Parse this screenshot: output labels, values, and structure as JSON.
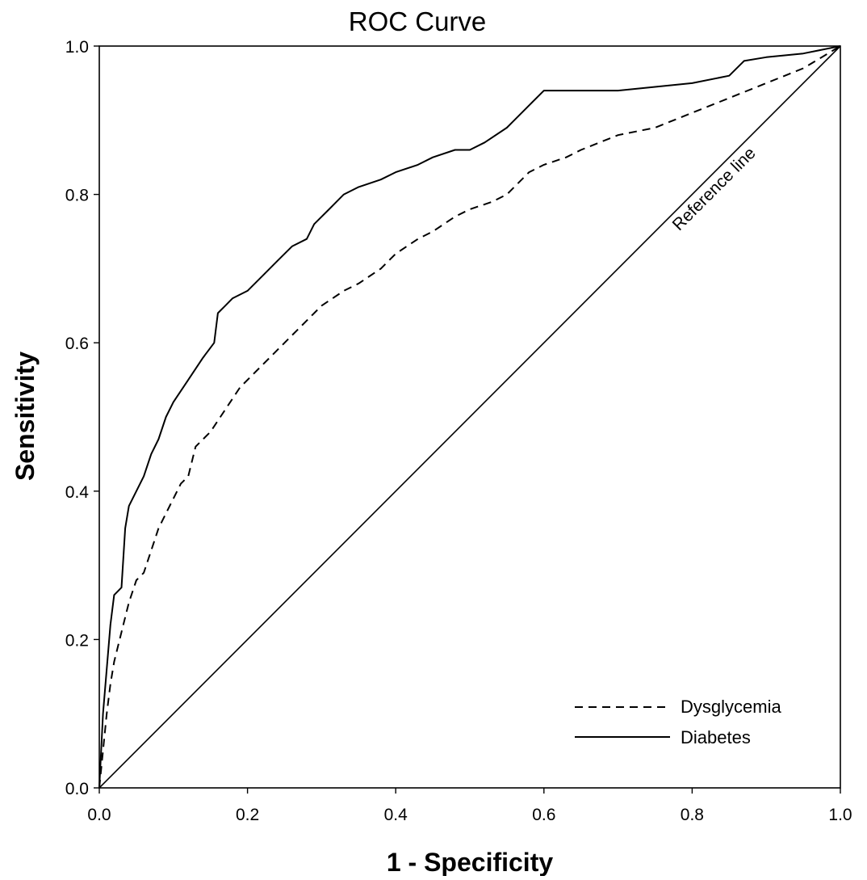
{
  "chart_data": {
    "type": "line",
    "title": "ROC Curve",
    "xlabel": "1 - Specificity",
    "ylabel": "Sensitivity",
    "xlim": [
      0,
      1
    ],
    "ylim": [
      0,
      1
    ],
    "xticks": [
      0.0,
      0.2,
      0.4,
      0.6,
      0.8,
      1.0
    ],
    "yticks": [
      0.0,
      0.2,
      0.4,
      0.6,
      0.8,
      1.0
    ],
    "xtick_labels": [
      "0.0",
      "0.2",
      "0.4",
      "0.6",
      "0.8",
      "1.0"
    ],
    "ytick_labels": [
      "0.0",
      "0.2",
      "0.4",
      "0.6",
      "0.8",
      "1.0"
    ],
    "grid": false,
    "legend_position": "bottom-right",
    "series": [
      {
        "name": "Dysglycemia",
        "style": "dashed",
        "x": [
          0,
          0.005,
          0.01,
          0.015,
          0.02,
          0.03,
          0.04,
          0.05,
          0.06,
          0.07,
          0.08,
          0.09,
          0.1,
          0.11,
          0.12,
          0.13,
          0.15,
          0.17,
          0.19,
          0.22,
          0.25,
          0.28,
          0.3,
          0.33,
          0.35,
          0.38,
          0.4,
          0.43,
          0.45,
          0.48,
          0.5,
          0.53,
          0.55,
          0.58,
          0.6,
          0.63,
          0.65,
          0.7,
          0.75,
          0.8,
          0.85,
          0.9,
          0.95,
          1.0
        ],
        "y": [
          0,
          0.05,
          0.1,
          0.14,
          0.17,
          0.21,
          0.25,
          0.28,
          0.29,
          0.32,
          0.35,
          0.37,
          0.39,
          0.41,
          0.42,
          0.46,
          0.48,
          0.51,
          0.54,
          0.57,
          0.6,
          0.63,
          0.65,
          0.67,
          0.68,
          0.7,
          0.72,
          0.74,
          0.75,
          0.77,
          0.78,
          0.79,
          0.8,
          0.83,
          0.84,
          0.85,
          0.86,
          0.88,
          0.89,
          0.91,
          0.93,
          0.95,
          0.97,
          1.0
        ]
      },
      {
        "name": "Diabetes",
        "style": "solid",
        "x": [
          0,
          0.005,
          0.01,
          0.015,
          0.02,
          0.03,
          0.035,
          0.04,
          0.05,
          0.06,
          0.07,
          0.08,
          0.09,
          0.1,
          0.12,
          0.14,
          0.155,
          0.16,
          0.17,
          0.18,
          0.2,
          0.22,
          0.24,
          0.26,
          0.28,
          0.29,
          0.31,
          0.33,
          0.35,
          0.38,
          0.4,
          0.43,
          0.45,
          0.48,
          0.5,
          0.52,
          0.55,
          0.58,
          0.6,
          0.65,
          0.7,
          0.75,
          0.8,
          0.85,
          0.87,
          0.9,
          0.95,
          1.0
        ],
        "y": [
          0,
          0.1,
          0.16,
          0.22,
          0.26,
          0.27,
          0.35,
          0.38,
          0.4,
          0.42,
          0.45,
          0.47,
          0.5,
          0.52,
          0.55,
          0.58,
          0.6,
          0.64,
          0.65,
          0.66,
          0.67,
          0.69,
          0.71,
          0.73,
          0.74,
          0.76,
          0.78,
          0.8,
          0.81,
          0.82,
          0.83,
          0.84,
          0.85,
          0.86,
          0.86,
          0.87,
          0.89,
          0.92,
          0.94,
          0.94,
          0.94,
          0.945,
          0.95,
          0.96,
          0.98,
          0.985,
          0.99,
          1.0
        ]
      }
    ],
    "reference_line": {
      "label": "Reference  line",
      "x": [
        0,
        1
      ],
      "y": [
        0,
        1
      ]
    }
  }
}
